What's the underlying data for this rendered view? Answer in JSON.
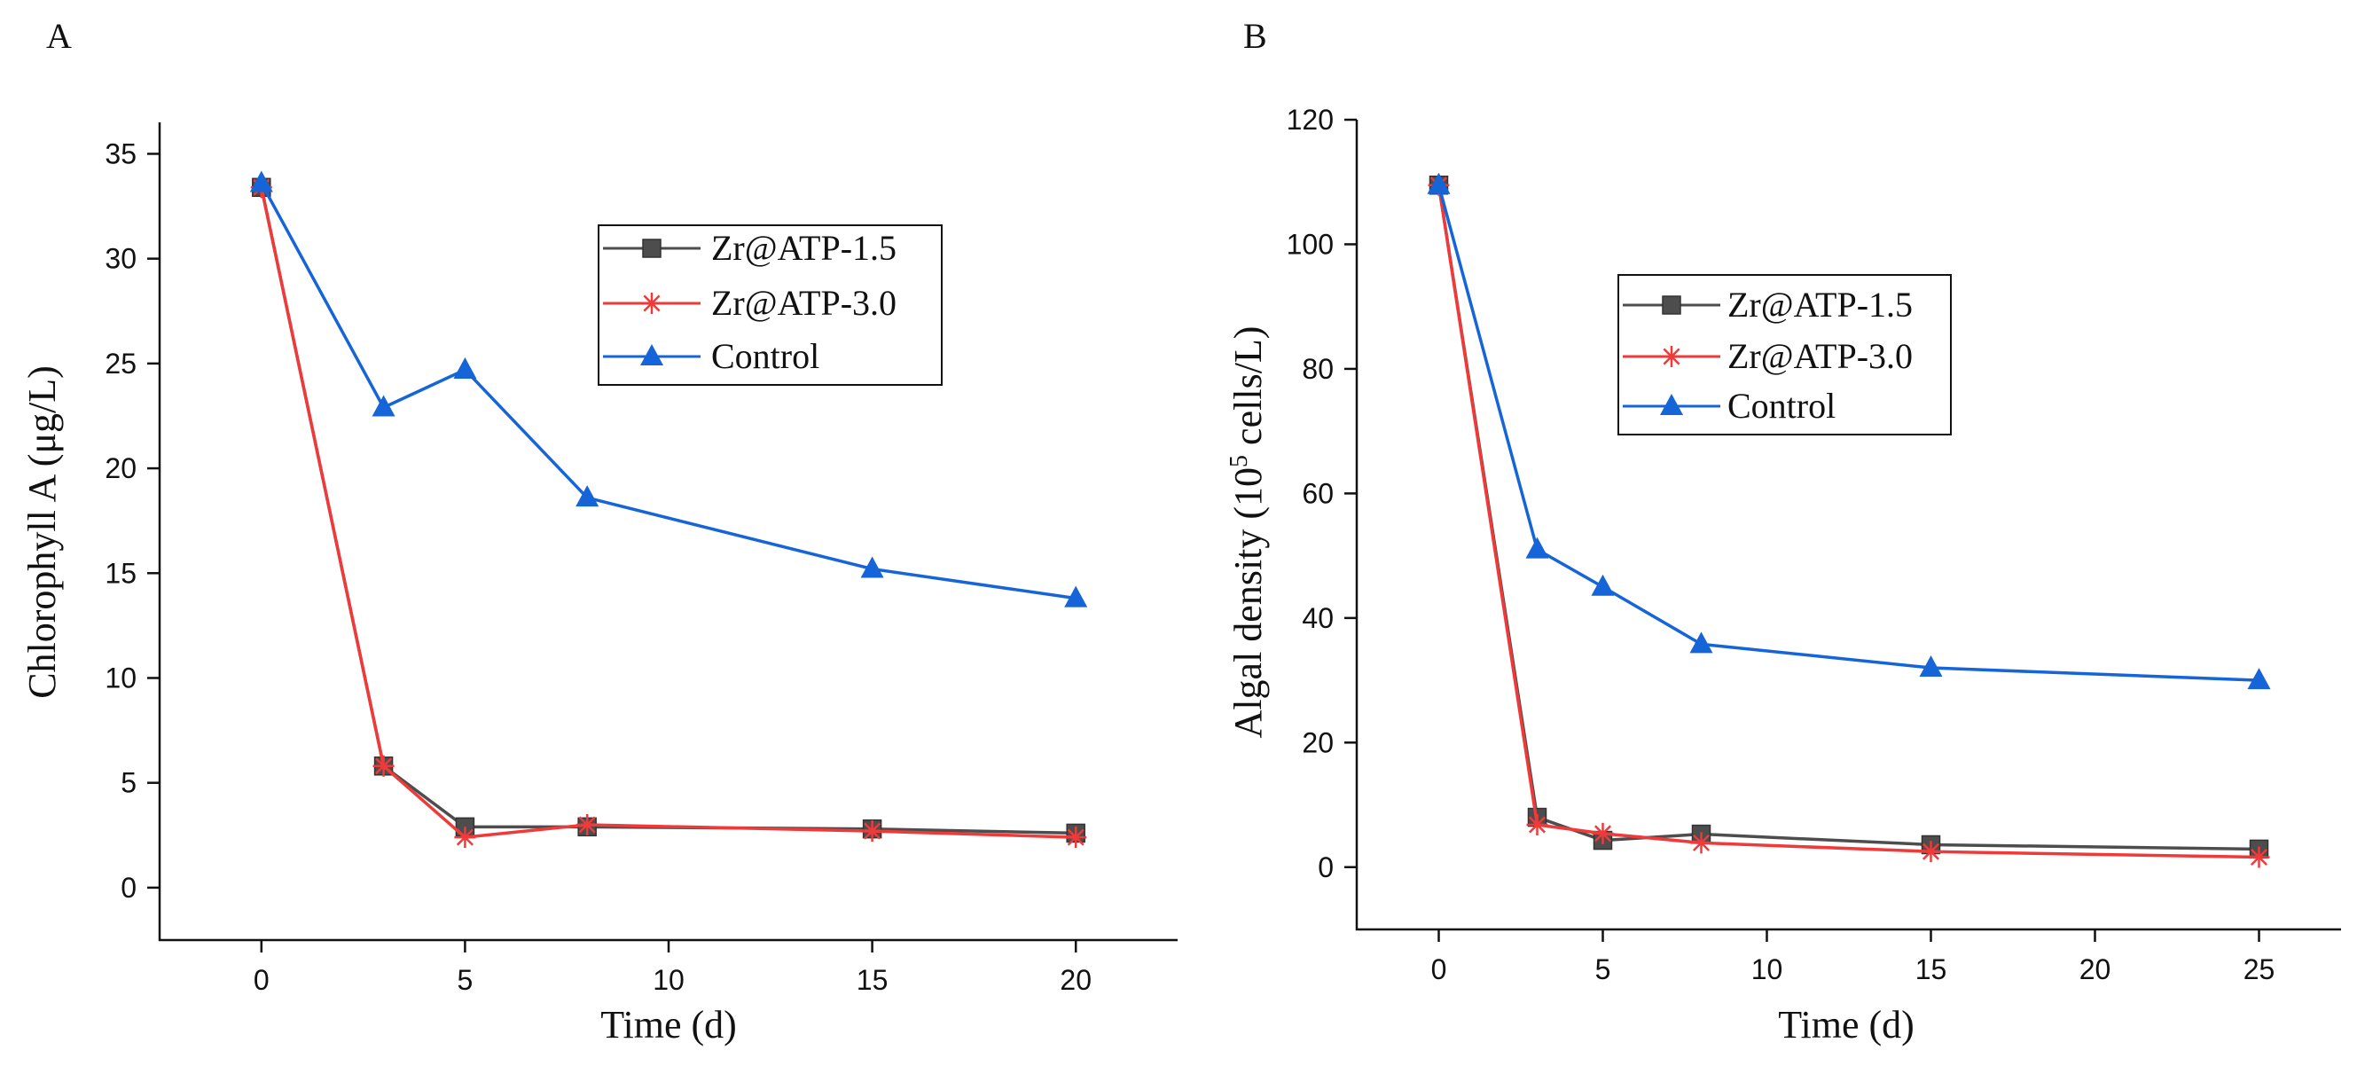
{
  "colors": {
    "zr15": "#4d4d4d",
    "zr30": "#f03a3a",
    "control": "#1565d8",
    "axis": "#111111"
  },
  "chart_data": [
    {
      "panel": "A",
      "type": "line",
      "xlabel": "Time (d)",
      "ylabel": "Chlorophyll A (μg/L)",
      "xlim": [
        -2.5,
        22.5
      ],
      "ylim": [
        -2.5,
        36.5
      ],
      "xticks": [
        0,
        5,
        10,
        15,
        20
      ],
      "yticks": [
        0,
        5,
        10,
        15,
        20,
        25,
        30,
        35
      ],
      "xtick_labels": [
        "0",
        "5",
        "10",
        "15",
        "20"
      ],
      "ytick_labels": [
        "0",
        "5",
        "10",
        "15",
        "20",
        "25",
        "30",
        "35"
      ],
      "legend_position": "top-right",
      "series": [
        {
          "name": "Zr@ATP-1.5",
          "marker": "square",
          "color_key": "zr15",
          "x": [
            0,
            3,
            5,
            8,
            15,
            20
          ],
          "y": [
            33.4,
            5.8,
            2.9,
            2.9,
            2.8,
            2.6
          ]
        },
        {
          "name": "Zr@ATP-3.0",
          "marker": "star",
          "color_key": "zr30",
          "x": [
            0,
            3,
            5,
            8,
            15,
            20
          ],
          "y": [
            33.4,
            5.8,
            2.4,
            3.0,
            2.7,
            2.4
          ]
        },
        {
          "name": "Control",
          "marker": "triangle",
          "color_key": "control",
          "x": [
            0,
            3,
            5,
            8,
            15,
            20
          ],
          "y": [
            33.6,
            22.9,
            24.7,
            18.6,
            15.2,
            13.8
          ]
        }
      ]
    },
    {
      "panel": "B",
      "type": "line",
      "xlabel": "Time (d)",
      "ylabel_main": "Algal density (10",
      "ylabel_sup": "5",
      "ylabel_tail": " cells/L)",
      "xlim": [
        -2.5,
        27.5
      ],
      "ylim": [
        -10,
        120
      ],
      "xticks": [
        0,
        5,
        10,
        15,
        20,
        25
      ],
      "yticks": [
        0,
        20,
        40,
        60,
        80,
        100,
        120
      ],
      "xtick_labels": [
        "0",
        "5",
        "10",
        "15",
        "20",
        "25"
      ],
      "ytick_labels": [
        "0",
        "20",
        "40",
        "60",
        "80",
        "100",
        "120"
      ],
      "legend_position": "top-right",
      "series": [
        {
          "name": "Zr@ATP-1.5",
          "marker": "square",
          "color_key": "zr15",
          "x": [
            0,
            3,
            5,
            8,
            15,
            25
          ],
          "y": [
            109.5,
            8.0,
            4.3,
            5.3,
            3.6,
            2.9
          ]
        },
        {
          "name": "Zr@ATP-3.0",
          "marker": "star",
          "color_key": "zr30",
          "x": [
            0,
            3,
            5,
            8,
            15,
            25
          ],
          "y": [
            109.5,
            6.8,
            5.4,
            3.9,
            2.5,
            1.6
          ]
        },
        {
          "name": "Control",
          "marker": "triangle",
          "color_key": "control",
          "x": [
            0,
            3,
            5,
            8,
            15,
            25
          ],
          "y": [
            109.5,
            51.0,
            45.0,
            35.8,
            32.0,
            30.0
          ]
        }
      ]
    }
  ]
}
